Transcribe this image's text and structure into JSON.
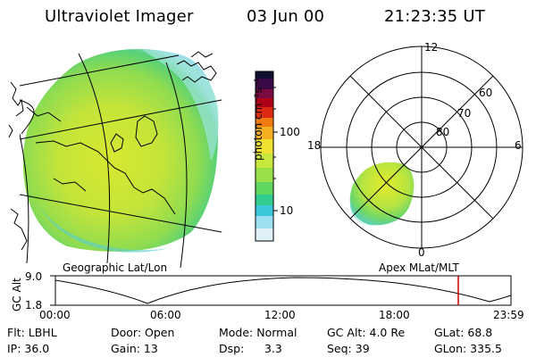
{
  "header": {
    "instrument": "Ultraviolet Imager",
    "date": "03 Jun 00",
    "time": "21:23:35 UT"
  },
  "geo_panel": {
    "label": "Geographic Lat/Lon"
  },
  "colorbar": {
    "unit_label": "photon cm⁻²s⁻¹",
    "tick_labels": [
      "100",
      "10"
    ],
    "colors": [
      "#101030",
      "#3a0a48",
      "#7a0a40",
      "#b00018",
      "#dd2a10",
      "#f07a10",
      "#f4b020",
      "#f0e030",
      "#c8e840",
      "#98e048",
      "#60d860",
      "#30cc90",
      "#38c8d8",
      "#9cdff0",
      "#e0f0f8"
    ]
  },
  "polar_panel": {
    "label": "Apex MLat/MLT",
    "mlt_labels": {
      "top": "12",
      "left": "18",
      "right": "6",
      "bottom": "0"
    },
    "lat_labels": [
      "60",
      "70",
      "80"
    ]
  },
  "altitude_plot": {
    "ylabel": "GC Alt",
    "y_ticks": [
      "9.0",
      "1.8"
    ],
    "x_ticks": [
      "00:00",
      "06:00",
      "12:00",
      "18:00",
      "23:59"
    ]
  },
  "info_row1": {
    "flt": "Flt: LBHL",
    "door": "Door: Open",
    "mode": "Mode: Normal",
    "gc_alt": "GC Alt: 4.0 Re",
    "glat": "GLat:  68.8"
  },
  "info_row2": {
    "ip": "IP: 36.0",
    "gain": "Gain: 13",
    "dsp_label": "Dsp:",
    "dsp_value": "3.3",
    "seq": "Seq: 39",
    "glon": "GLon: 335.5"
  }
}
